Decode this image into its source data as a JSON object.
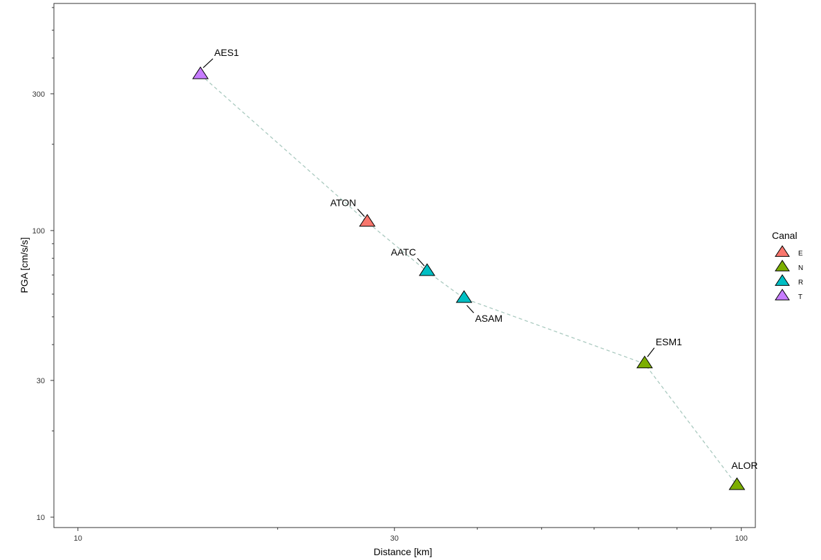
{
  "chart_data": {
    "type": "scatter",
    "xlabel": "Distance [km]",
    "ylabel": "PGA [cm/s/s]",
    "x_scale": "log",
    "y_scale": "log",
    "xlim": [
      9.2,
      105
    ],
    "ylim": [
      9.2,
      620
    ],
    "x_ticks": [
      {
        "value": 10,
        "label": "10"
      },
      {
        "value": 30,
        "label": "30"
      },
      {
        "value": 100,
        "label": "100"
      }
    ],
    "x_minor_ticks": [
      20,
      40,
      50,
      60,
      70,
      80,
      90
    ],
    "y_ticks": [
      {
        "value": 10,
        "label": "10"
      },
      {
        "value": 30,
        "label": "30"
      },
      {
        "value": 100,
        "label": "100"
      },
      {
        "value": 300,
        "label": "300"
      }
    ],
    "y_minor_ticks": [
      20,
      40,
      50,
      60,
      70,
      80,
      90,
      200,
      400,
      500,
      600
    ],
    "grid": false,
    "legend": {
      "title": "Canal",
      "position": "right",
      "entries": [
        {
          "label": "E",
          "color": "#f8766d"
        },
        {
          "label": "N",
          "color": "#7cae00"
        },
        {
          "label": "R",
          "color": "#00bfc4"
        },
        {
          "label": "T",
          "color": "#c77cff"
        }
      ]
    },
    "points": [
      {
        "station": "AES1",
        "canal": "T",
        "x": 15.3,
        "y": 350
      },
      {
        "station": "ATON",
        "canal": "E",
        "x": 27.3,
        "y": 107
      },
      {
        "station": "AATC",
        "canal": "R",
        "x": 33.6,
        "y": 72
      },
      {
        "station": "ASAM",
        "canal": "R",
        "x": 38.2,
        "y": 58
      },
      {
        "station": "ESM1",
        "canal": "N",
        "x": 71.5,
        "y": 34.3
      },
      {
        "station": "ALOR",
        "canal": "N",
        "x": 98.5,
        "y": 12.9
      }
    ],
    "line": {
      "style": "dashed",
      "color": "#a9c9bf",
      "order": [
        "AES1",
        "ATON",
        "AATC",
        "ASAM",
        "ESM1",
        "ALOR"
      ]
    }
  }
}
